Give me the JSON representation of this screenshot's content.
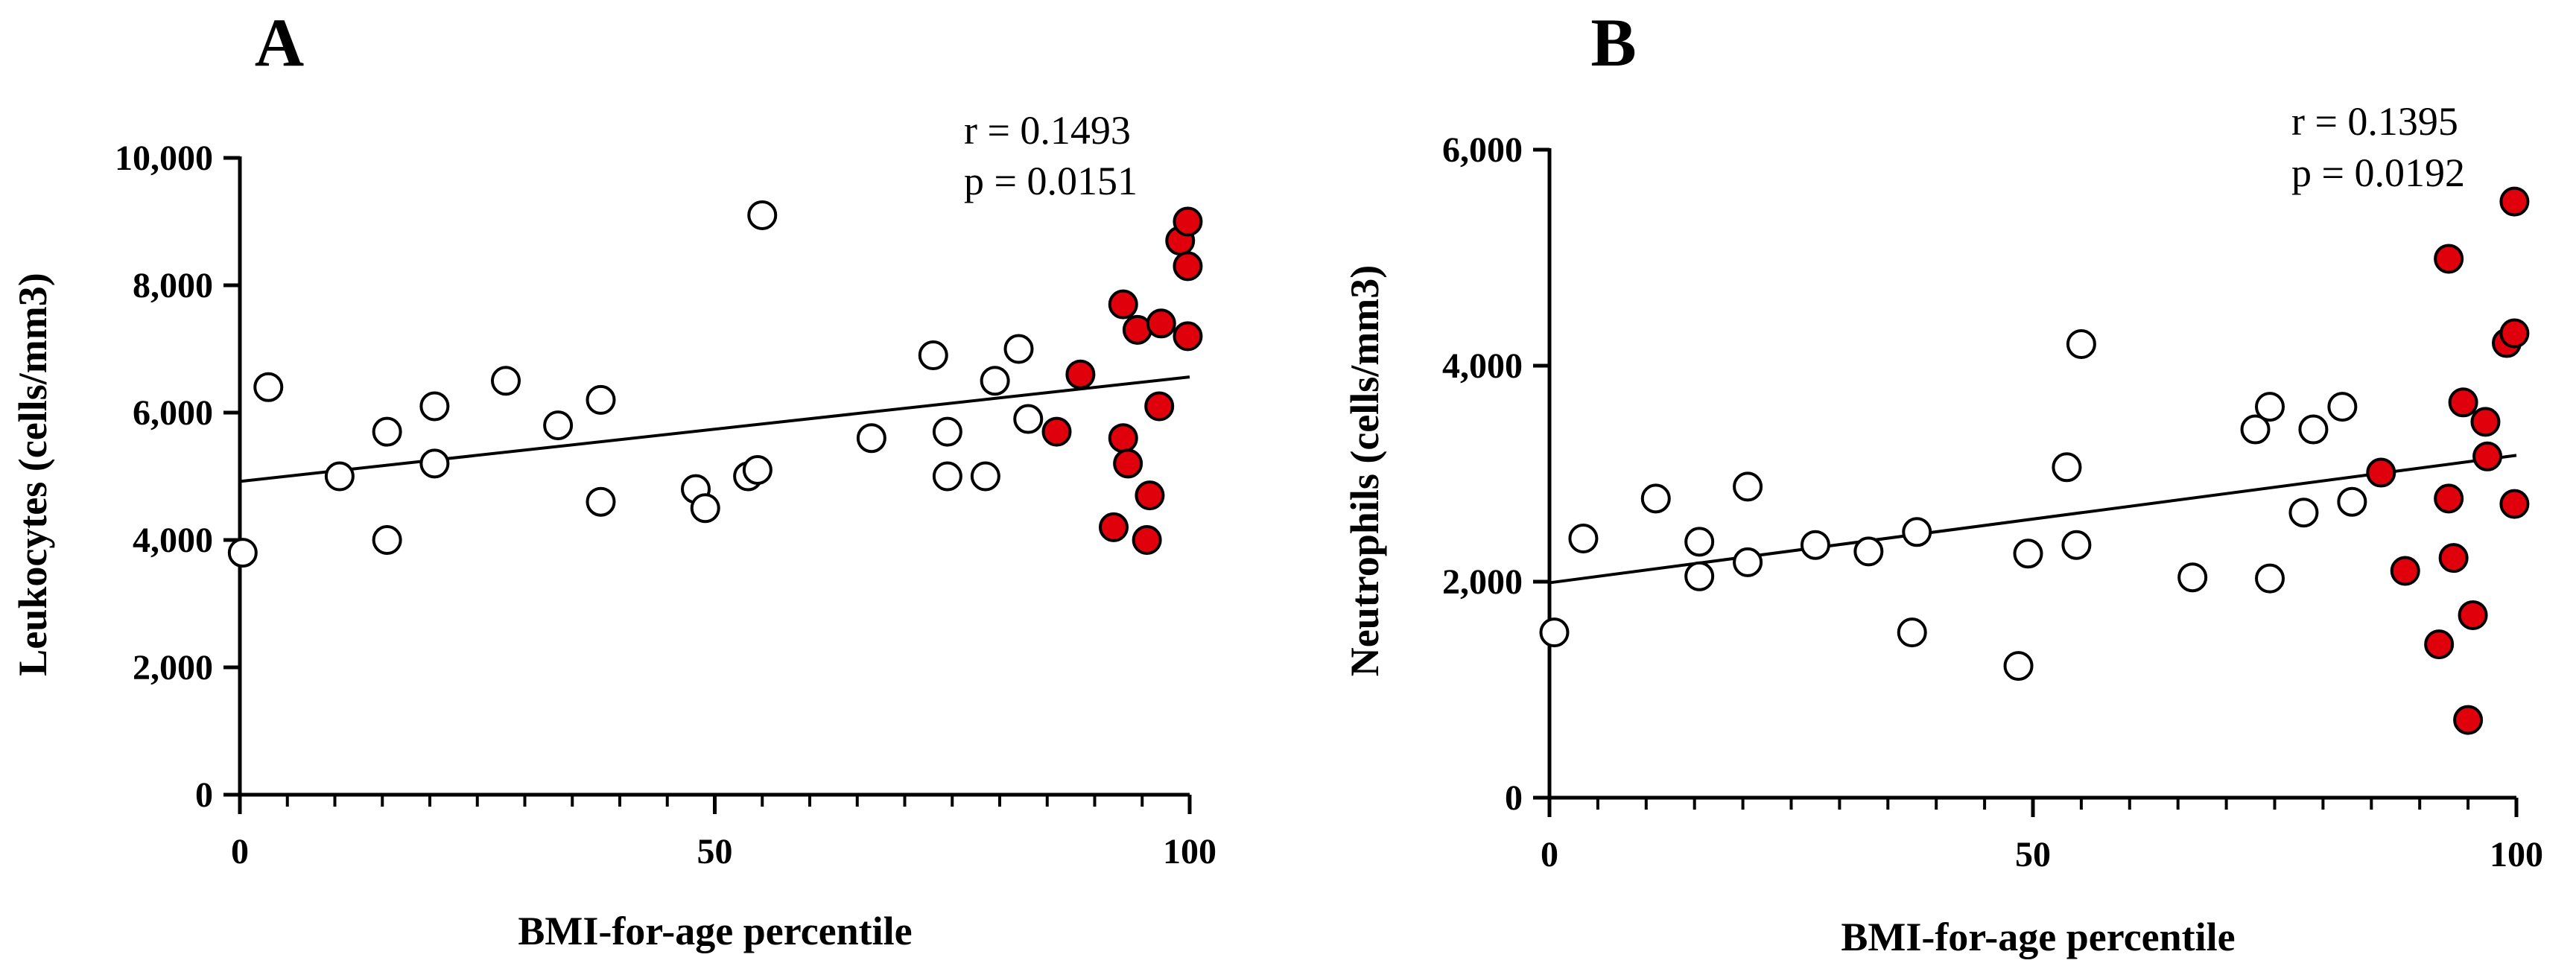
{
  "chart_data": [
    {
      "type": "scatter",
      "panel_label": "A",
      "xlabel": "BMI-for-age percentile",
      "ylabel": "Leukocytes (cells/mm3)",
      "xlim": [
        0,
        100
      ],
      "ylim": [
        0,
        10000
      ],
      "x_ticks": [
        0,
        50,
        100
      ],
      "x_tick_labels": [
        "0",
        "50",
        "100"
      ],
      "y_ticks": [
        0,
        2000,
        4000,
        6000,
        8000,
        10000
      ],
      "y_tick_labels": [
        "0",
        "2,000",
        "4,000",
        "6,000",
        "8,000",
        "10,000"
      ],
      "annotations": [
        "r = 0.1493",
        "p = 0.0151"
      ],
      "regression_line": {
        "x": [
          0,
          100
        ],
        "y": [
          4920,
          6560
        ]
      },
      "colors": {
        "open": "#ffffff",
        "filled": "#e0000b"
      },
      "series": [
        {
          "name": "open",
          "points": [
            [
              0.3,
              3800
            ],
            [
              3,
              6400
            ],
            [
              10.5,
              5000
            ],
            [
              15.5,
              5700
            ],
            [
              15.5,
              4000
            ],
            [
              20.5,
              6100
            ],
            [
              20.5,
              5200
            ],
            [
              28,
              6500
            ],
            [
              33.5,
              5800
            ],
            [
              38,
              6200
            ],
            [
              38,
              4600
            ],
            [
              48,
              4800
            ],
            [
              49,
              4500
            ],
            [
              53.5,
              5000
            ],
            [
              54.5,
              5100
            ],
            [
              55,
              9100
            ],
            [
              66.5,
              5600
            ],
            [
              73,
              6900
            ],
            [
              74.5,
              5700
            ],
            [
              74.5,
              5000
            ],
            [
              78.5,
              5000
            ],
            [
              79.5,
              6500
            ],
            [
              82,
              7000
            ],
            [
              83,
              5900
            ]
          ]
        },
        {
          "name": "filled",
          "points": [
            [
              86,
              5700
            ],
            [
              88.5,
              6600
            ],
            [
              92,
              4200
            ],
            [
              93,
              7700
            ],
            [
              93,
              5600
            ],
            [
              93.5,
              5200
            ],
            [
              94.5,
              7300
            ],
            [
              95.5,
              4000
            ],
            [
              95.8,
              4700
            ],
            [
              96.8,
              6100
            ],
            [
              97,
              7400
            ],
            [
              99,
              8700
            ],
            [
              99.8,
              9000
            ],
            [
              99.8,
              8300
            ],
            [
              99.8,
              7200
            ]
          ]
        }
      ]
    },
    {
      "type": "scatter",
      "panel_label": "B",
      "xlabel": "BMI-for-age percentile",
      "ylabel": "Neutrophils (cells/mm3)",
      "xlim": [
        0,
        100
      ],
      "ylim": [
        0,
        6000
      ],
      "x_ticks": [
        0,
        50,
        100
      ],
      "x_tick_labels": [
        "0",
        "50",
        "100"
      ],
      "y_ticks": [
        0,
        2000,
        4000,
        6000
      ],
      "y_tick_labels": [
        "0",
        "2,000",
        "4,000",
        "6,000"
      ],
      "annotations": [
        "r = 0.1395",
        "p = 0.0192"
      ],
      "regression_line": {
        "x": [
          0,
          100
        ],
        "y": [
          1990,
          3170
        ]
      },
      "colors": {
        "open": "#ffffff",
        "filled": "#e0000b"
      },
      "series": [
        {
          "name": "open",
          "points": [
            [
              0.5,
              1530
            ],
            [
              3.5,
              2400
            ],
            [
              11,
              2770
            ],
            [
              15.5,
              2370
            ],
            [
              15.5,
              2050
            ],
            [
              20.5,
              2880
            ],
            [
              20.5,
              2180
            ],
            [
              27.5,
              2340
            ],
            [
              33,
              2280
            ],
            [
              37.5,
              1530
            ],
            [
              38,
              2460
            ],
            [
              48.5,
              1220
            ],
            [
              49.5,
              2260
            ],
            [
              53.5,
              3060
            ],
            [
              54.5,
              2340
            ],
            [
              55,
              4200
            ],
            [
              66.5,
              2040
            ],
            [
              73,
              3410
            ],
            [
              74.5,
              3620
            ],
            [
              74.5,
              2030
            ],
            [
              78,
              2640
            ],
            [
              79,
              3410
            ],
            [
              82,
              3620
            ],
            [
              83,
              2740
            ]
          ]
        },
        {
          "name": "filled",
          "points": [
            [
              86,
              3010
            ],
            [
              88.5,
              2100
            ],
            [
              92,
              1420
            ],
            [
              93,
              4990
            ],
            [
              93,
              2770
            ],
            [
              93.5,
              2220
            ],
            [
              94.5,
              3660
            ],
            [
              95,
              720
            ],
            [
              95.5,
              1690
            ],
            [
              96.8,
              3480
            ],
            [
              97,
              3160
            ],
            [
              99,
              4210
            ],
            [
              99.8,
              5520
            ],
            [
              99.8,
              4300
            ],
            [
              99.8,
              2720
            ]
          ]
        }
      ]
    }
  ]
}
